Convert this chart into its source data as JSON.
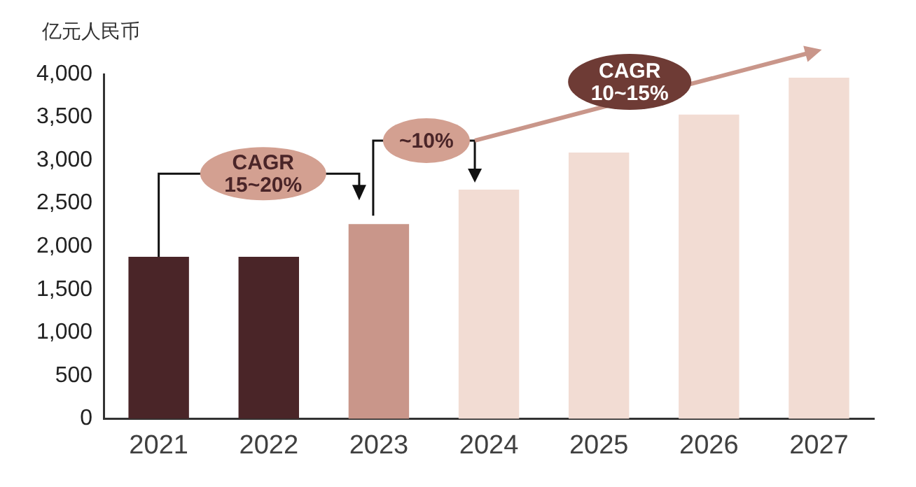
{
  "chart_data": {
    "type": "bar",
    "ylabel": "亿元人民币",
    "categories": [
      "2021",
      "2022",
      "2023",
      "2024",
      "2025",
      "2026",
      "2027"
    ],
    "values": [
      1880,
      1880,
      2260,
      2660,
      3090,
      3530,
      3960
    ],
    "colors": [
      "#4a2528",
      "#4a2528",
      "#c9968a",
      "#f2dcd3",
      "#f2dcd3",
      "#f2dcd3",
      "#f2dcd3"
    ],
    "ylim": [
      0,
      4000
    ],
    "yticks": [
      0,
      500,
      {
        "value": 1000,
        "label": "1,000"
      },
      {
        "value": 1500,
        "label": "1,500"
      },
      {
        "value": 2000,
        "label": "2,000"
      },
      {
        "value": 2500,
        "label": "2,500"
      },
      {
        "value": 3000,
        "label": "3,000"
      },
      {
        "value": 3500,
        "label": "3,500"
      },
      {
        "value": 4000,
        "label": "4,000"
      }
    ],
    "annotations": [
      "CAGR 15~20%",
      {
        "text": "~10%",
        "x": "2024",
        "y": 2660
      },
      "CAGR 10~15%"
    ],
    "grid": false,
    "legend": false
  }
}
